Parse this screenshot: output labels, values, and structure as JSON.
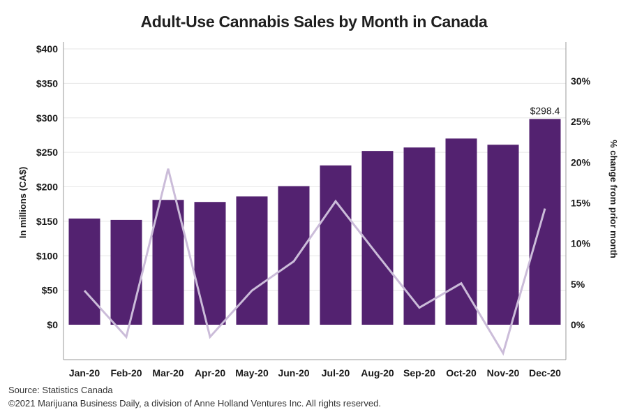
{
  "title": "Adult-Use Cannabis Sales by Month in Canada",
  "footer": {
    "source": "Source: Statistics Canada",
    "copyright": "©2021 Marijuana Business Daily, a division of Anne Holland Ventures Inc. All rights reserved."
  },
  "colors": {
    "bar": "#532270",
    "line": "#cbbcd9",
    "axis": "#9a9a9a",
    "grid": "#e6e6e6"
  },
  "chart_data": {
    "type": "bar",
    "title": "Adult-Use Cannabis Sales by Month in Canada",
    "categories": [
      "Jan-20",
      "Feb-20",
      "Mar-20",
      "Apr-20",
      "May-20",
      "Jun-20",
      "Jul-20",
      "Aug-20",
      "Sep-20",
      "Oct-20",
      "Nov-20",
      "Dec-20"
    ],
    "series": [
      {
        "type": "bar",
        "axis": "left",
        "values": [
          154,
          152,
          181,
          178,
          186,
          201,
          231,
          252,
          257,
          270,
          261,
          298.4
        ]
      },
      {
        "type": "line",
        "axis": "right",
        "values": [
          4.2,
          -1.5,
          19.2,
          -1.5,
          4.2,
          7.8,
          15.2,
          8.6,
          2.1,
          5.1,
          -3.5,
          14.3
        ]
      }
    ],
    "data_labels": [
      {
        "category": "Dec-20",
        "text": "$298.4"
      }
    ],
    "ylabel": "In millions (CA$)",
    "y2label": "% change from prior month",
    "ylim": [
      -50,
      400
    ],
    "y_ticks": [
      0,
      50,
      100,
      150,
      200,
      250,
      300,
      350,
      400
    ],
    "y_tick_labels": [
      "$0",
      "$50",
      "$100",
      "$150",
      "$200",
      "$250",
      "$300",
      "$350",
      "$400"
    ],
    "y2lim": [
      -4,
      35
    ],
    "y2_ticks": [
      0,
      5,
      10,
      15,
      20,
      25,
      30
    ],
    "y2_tick_labels": [
      "0%",
      "5%",
      "10%",
      "15%",
      "20%",
      "25%",
      "30%"
    ],
    "grid": true
  }
}
